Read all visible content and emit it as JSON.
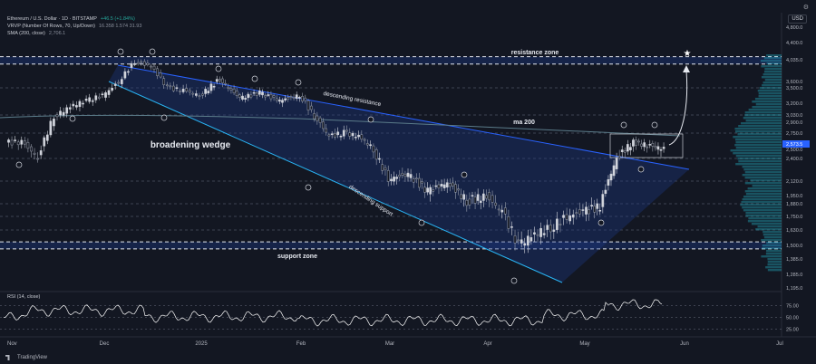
{
  "header": {
    "symbol_line": "Ethereum / U.S. Dollar · 1D · BITSTAMP",
    "symbol_change": "+46.5 (+1.84%)",
    "vrvp_line": "VRVP (Number Of Rows, 70, Up/Down)",
    "vrvp_values": "16.358  1.574  31.93",
    "sma_line": "SMA (200, close)",
    "sma_value": "2,706.1"
  },
  "rsi_header": "RSI (14, close)",
  "brand": "TradingView",
  "currency": "USD",
  "annotations": {
    "resistance_zone": "resistance zone",
    "support_zone": "support zone",
    "descending_resistance": "descending resistance",
    "descending_support": "descending support",
    "ma200": "ma 200",
    "broadening_wedge": "broadening wedge"
  },
  "chart_data": {
    "type": "line",
    "subtype": "candlestick",
    "x_ticks": [
      "Nov",
      "Dec",
      "2025",
      "Feb",
      "Mar",
      "Apr",
      "May",
      "Jun",
      "Jul"
    ],
    "y_ticks": [
      4800,
      4400,
      4035,
      3600,
      3500,
      3200,
      3030,
      2900,
      2750,
      2573.5,
      2500,
      2400,
      2120,
      1950,
      1880,
      1750,
      1630,
      1500,
      1385,
      1285,
      1195
    ],
    "y_tick_labels": [
      "4,800.0",
      "4,400.0",
      "4,035.0",
      "3,600.0",
      "3,500.0",
      "3,200.0",
      "3,030.0",
      "2,900.0",
      "2,750.0",
      "2,573.5",
      "2,500.0",
      "2,400.0",
      "2,120.0",
      "1,950.0",
      "1,880.0",
      "1,750.0",
      "1,630.0",
      "1,500.0",
      "1,385.0",
      "1,285.0",
      "1,195.0"
    ],
    "last_price": 2573.5,
    "resistance_zone": [
      3950,
      4100
    ],
    "support_zone": [
      1470,
      1530
    ],
    "close_path": [
      [
        "Nov",
        2600
      ],
      [
        "Nov",
        2400
      ],
      [
        "Nov",
        3000
      ],
      [
        "Nov",
        3150
      ],
      [
        "Nov",
        3250
      ],
      [
        "Nov",
        3350
      ],
      [
        "Dec",
        3600
      ],
      [
        "Dec",
        4000
      ],
      [
        "Dec",
        3900
      ],
      [
        "Dec",
        3500
      ],
      [
        "Dec",
        3450
      ],
      [
        "Dec",
        3350
      ],
      [
        "2025",
        3650
      ],
      [
        "2025",
        3300
      ],
      [
        "2025",
        3400
      ],
      [
        "2025",
        3250
      ],
      [
        "2025",
        3350
      ],
      [
        "Feb",
        3000
      ],
      [
        "Feb",
        2700
      ],
      [
        "Feb",
        2750
      ],
      [
        "Feb",
        2700
      ],
      [
        "Feb",
        2500
      ],
      [
        "Feb",
        2150
      ],
      [
        "Mar",
        2200
      ],
      [
        "Mar",
        2000
      ],
      [
        "Mar",
        2100
      ],
      [
        "Mar",
        1900
      ],
      [
        "Mar",
        1950
      ],
      [
        "Apr",
        1800
      ],
      [
        "Apr",
        1500
      ],
      [
        "Apr",
        1600
      ],
      [
        "Apr",
        1650
      ],
      [
        "Apr",
        1750
      ],
      [
        "Apr",
        1800
      ],
      [
        "May",
        1850
      ],
      [
        "May",
        2400
      ],
      [
        "May",
        2600
      ],
      [
        "May",
        2550
      ],
      [
        "May",
        2500
      ],
      [
        "May",
        2573.5
      ]
    ],
    "rsi_ticks": [
      75,
      50,
      25
    ],
    "rsi_tick_labels": [
      "75.00",
      "50.00",
      "25.00"
    ],
    "legend": "none",
    "grid": false
  }
}
